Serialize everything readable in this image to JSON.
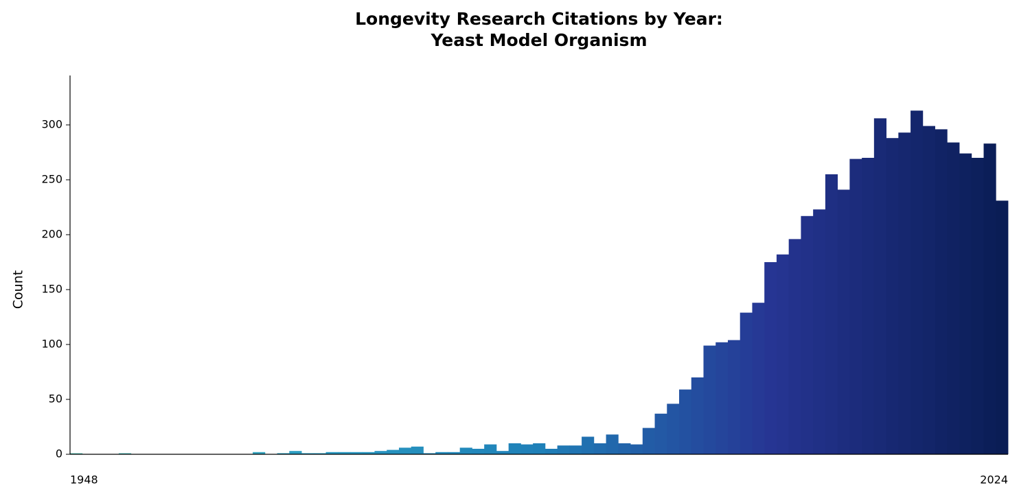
{
  "chart_data": {
    "type": "bar",
    "title": "Longevity Research Citations by Year:\nYeast Model Organism",
    "ylabel": "Count",
    "categories": [
      "1948",
      null,
      null,
      null,
      null,
      null,
      null,
      null,
      null,
      null,
      null,
      null,
      null,
      null,
      null,
      null,
      null,
      null,
      null,
      null,
      null,
      null,
      null,
      null,
      null,
      null,
      null,
      null,
      null,
      null,
      null,
      null,
      null,
      null,
      null,
      null,
      null,
      null,
      null,
      null,
      null,
      null,
      null,
      null,
      null,
      null,
      null,
      null,
      null,
      null,
      null,
      null,
      null,
      null,
      null,
      null,
      null,
      null,
      null,
      null,
      null,
      null,
      null,
      null,
      null,
      null,
      null,
      null,
      null,
      null,
      null,
      null,
      null,
      null,
      null,
      null,
      "2024"
    ],
    "values": [
      1,
      0,
      0,
      0,
      1,
      0,
      0,
      0,
      0,
      0,
      0,
      0,
      0,
      0,
      0,
      2,
      0,
      1,
      3,
      1,
      1,
      2,
      2,
      2,
      2,
      3,
      4,
      6,
      7,
      1,
      2,
      2,
      6,
      5,
      9,
      3,
      10,
      9,
      10,
      5,
      8,
      8,
      16,
      10,
      18,
      10,
      9,
      24,
      37,
      46,
      59,
      70,
      99,
      102,
      104,
      129,
      138,
      175,
      182,
      196,
      217,
      223,
      255,
      241,
      269,
      270,
      306,
      288,
      293,
      313,
      299,
      296,
      284,
      274,
      270,
      283,
      231
    ],
    "colormap": [
      "#64c6b9",
      "#2a9cc2",
      "#1f80b8",
      "#263593",
      "#0a1d55"
    ],
    "ylim": [
      0,
      345
    ],
    "yticks": [
      0,
      50,
      100,
      150,
      200,
      250,
      300
    ],
    "grid": false
  }
}
